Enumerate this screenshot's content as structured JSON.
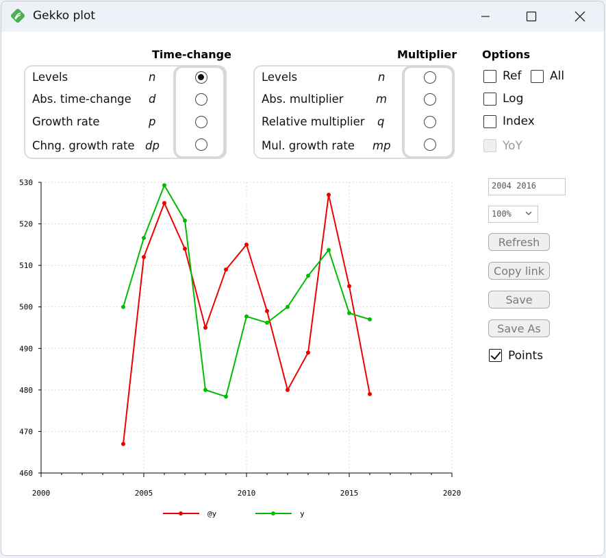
{
  "window": {
    "title": "Gekko plot"
  },
  "time_change": {
    "title": "Time-change",
    "rows": [
      {
        "label": "Levels",
        "code": "n",
        "checked": true
      },
      {
        "label": "Abs. time-change",
        "code": "d",
        "checked": false
      },
      {
        "label": "Growth rate",
        "code": "p",
        "checked": false
      },
      {
        "label": "Chng. growth rate",
        "code": "dp",
        "checked": false
      }
    ]
  },
  "multiplier": {
    "title": "Multiplier",
    "rows": [
      {
        "label": "Levels",
        "code": "n",
        "checked": false
      },
      {
        "label": "Abs. multiplier",
        "code": "m",
        "checked": false
      },
      {
        "label": "Relative multiplier",
        "code": "q",
        "checked": false
      },
      {
        "label": "Mul. growth rate",
        "code": "mp",
        "checked": false
      }
    ]
  },
  "options": {
    "title": "Options",
    "ref": "Ref",
    "all": "All",
    "log": "Log",
    "index": "Index",
    "yoy": "YoY"
  },
  "controls": {
    "period": "2004 2016",
    "zoom": "100%",
    "refresh": "Refresh",
    "copy_link": "Copy link",
    "save": "Save",
    "save_as": "Save As",
    "points_label": "Points",
    "points_checked": true
  },
  "chart_data": {
    "type": "line",
    "x_ticks": [
      "2000",
      "2005",
      "2010",
      "2015",
      "2020"
    ],
    "y_ticks": [
      "460",
      "470",
      "480",
      "490",
      "500",
      "510",
      "520",
      "530"
    ],
    "xlim": [
      2000,
      2020
    ],
    "ylim": [
      460,
      530
    ],
    "grid": true,
    "legend_position": "bottom",
    "x": [
      2004,
      2005,
      2006,
      2007,
      2008,
      2009,
      2010,
      2011,
      2012,
      2013,
      2014,
      2015,
      2016
    ],
    "series": [
      {
        "name": "@y",
        "color": "#ee0000",
        "values": [
          467,
          512,
          525,
          514,
          495,
          509,
          515,
          499,
          480,
          489,
          527,
          505,
          479
        ]
      },
      {
        "name": "y",
        "color": "#00bb00",
        "values": [
          500,
          516.6,
          529.3,
          520.8,
          480,
          478.4,
          497.7,
          496.2,
          500,
          507.5,
          513.7,
          498.5,
          497
        ]
      }
    ]
  }
}
